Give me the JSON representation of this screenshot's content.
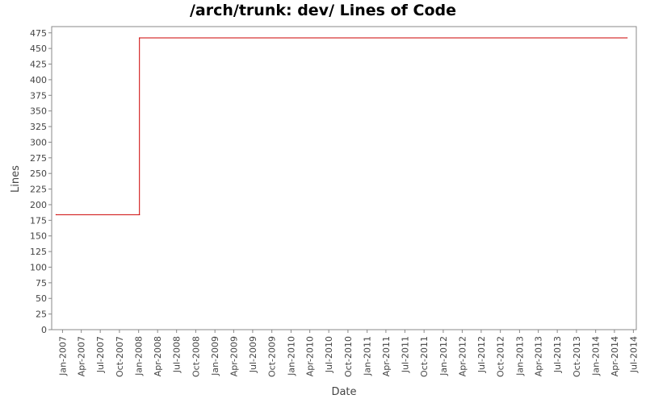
{
  "chart_data": {
    "type": "line",
    "title": "/arch/trunk: dev/ Lines of Code",
    "xlabel": "Date",
    "ylabel": "Lines",
    "ylim": [
      0,
      485
    ],
    "yticks": [
      0,
      25,
      50,
      75,
      100,
      125,
      150,
      175,
      200,
      225,
      250,
      275,
      300,
      325,
      350,
      375,
      400,
      425,
      450,
      475
    ],
    "xlim": [
      "2006-11-10",
      "2014-07-15"
    ],
    "xticks": [
      "2007-01-01",
      "2007-04-01",
      "2007-07-01",
      "2007-10-01",
      "2008-01-01",
      "2008-04-01",
      "2008-07-01",
      "2008-10-01",
      "2009-01-01",
      "2009-04-01",
      "2009-07-01",
      "2009-10-01",
      "2010-01-01",
      "2010-04-01",
      "2010-07-01",
      "2010-10-01",
      "2011-01-01",
      "2011-04-01",
      "2011-07-01",
      "2011-10-01",
      "2012-01-01",
      "2012-04-01",
      "2012-07-01",
      "2012-10-01",
      "2013-01-01",
      "2013-04-01",
      "2013-07-01",
      "2013-10-01",
      "2014-01-01",
      "2014-04-01",
      "2014-07-01"
    ],
    "xtick_labels": [
      "Jan-2007",
      "Apr-2007",
      "Jul-2007",
      "Oct-2007",
      "Jan-2008",
      "Apr-2008",
      "Jul-2008",
      "Oct-2008",
      "Jan-2009",
      "Apr-2009",
      "Jul-2009",
      "Oct-2009",
      "Jan-2010",
      "Apr-2010",
      "Jul-2010",
      "Oct-2010",
      "Jan-2011",
      "Apr-2011",
      "Jul-2011",
      "Oct-2011",
      "Jan-2012",
      "Apr-2012",
      "Jul-2012",
      "Oct-2012",
      "Jan-2013",
      "Apr-2013",
      "Jul-2013",
      "Oct-2013",
      "Jan-2014",
      "Apr-2014",
      "Jul-2014"
    ],
    "grid": false,
    "series": [
      {
        "color": "#cc0000",
        "step": true,
        "points": [
          {
            "x": "2006-12-01",
            "y": 184
          },
          {
            "x": "2008-01-05",
            "y": 184
          },
          {
            "x": "2008-01-05",
            "y": 467
          },
          {
            "x": "2014-06-01",
            "y": 467
          }
        ]
      }
    ]
  }
}
